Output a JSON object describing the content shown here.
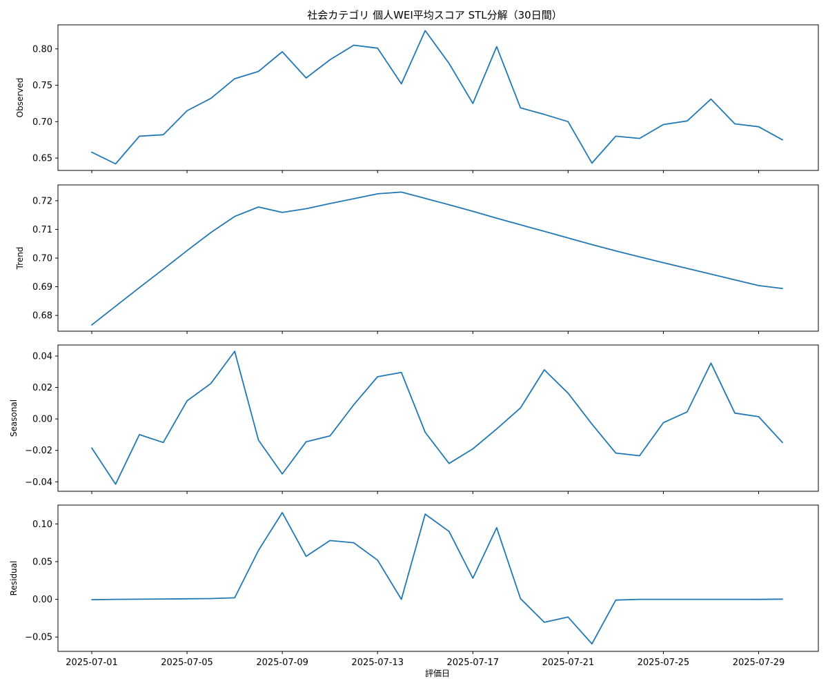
{
  "chart_data": {
    "type": "line",
    "title": "社会カテゴリ 個人WEI平均スコア STL分解（30日間）",
    "xlabel": "評価日",
    "x": [
      "2025-07-01",
      "2025-07-02",
      "2025-07-03",
      "2025-07-04",
      "2025-07-05",
      "2025-07-06",
      "2025-07-07",
      "2025-07-08",
      "2025-07-09",
      "2025-07-10",
      "2025-07-11",
      "2025-07-12",
      "2025-07-13",
      "2025-07-14",
      "2025-07-15",
      "2025-07-16",
      "2025-07-17",
      "2025-07-18",
      "2025-07-19",
      "2025-07-20",
      "2025-07-21",
      "2025-07-22",
      "2025-07-23",
      "2025-07-24",
      "2025-07-25",
      "2025-07-26",
      "2025-07-27",
      "2025-07-28",
      "2025-07-29",
      "2025-07-30"
    ],
    "x_ticks": [
      "2025-07-01",
      "2025-07-05",
      "2025-07-09",
      "2025-07-13",
      "2025-07-17",
      "2025-07-21",
      "2025-07-25",
      "2025-07-29"
    ],
    "line_color": "#1f77b4",
    "panels": [
      {
        "ylabel": "Observed",
        "ylim": [
          0.633,
          0.833
        ],
        "yticks": [
          0.65,
          0.7,
          0.75,
          0.8
        ],
        "ytick_labels": [
          "0.65",
          "0.70",
          "0.75",
          "0.80"
        ],
        "values": [
          0.658,
          0.642,
          0.68,
          0.682,
          0.715,
          0.732,
          0.759,
          0.769,
          0.796,
          0.76,
          0.785,
          0.805,
          0.801,
          0.752,
          0.825,
          0.78,
          0.725,
          0.803,
          0.719,
          0.71,
          0.7,
          0.643,
          0.68,
          0.677,
          0.696,
          0.701,
          0.731,
          0.697,
          0.693,
          0.675
        ]
      },
      {
        "ylabel": "Trend",
        "ylim": [
          0.6745,
          0.7255
        ],
        "yticks": [
          0.68,
          0.69,
          0.7,
          0.71,
          0.72
        ],
        "ytick_labels": [
          "0.68",
          "0.69",
          "0.70",
          "0.71",
          "0.72"
        ],
        "values": [
          0.6767,
          0.6832,
          0.6897,
          0.6961,
          0.7026,
          0.7089,
          0.7145,
          0.7178,
          0.7159,
          0.7172,
          0.719,
          0.7207,
          0.7224,
          0.723,
          0.7208,
          0.7186,
          0.7163,
          0.7139,
          0.7116,
          0.7093,
          0.707,
          0.7047,
          0.7025,
          0.7004,
          0.6984,
          0.6964,
          0.6944,
          0.6924,
          0.6904,
          0.6894
        ]
      },
      {
        "ylabel": "Seasonal",
        "ylim": [
          -0.046,
          0.047
        ],
        "yticks": [
          -0.04,
          -0.02,
          0.0,
          0.02,
          0.04
        ],
        "ytick_labels": [
          "−0.04",
          "−0.02",
          "0.00",
          "0.02",
          "0.04"
        ],
        "values": [
          -0.0185,
          -0.0415,
          -0.01,
          -0.015,
          0.0115,
          0.0225,
          0.043,
          -0.0135,
          -0.035,
          -0.0145,
          -0.0108,
          0.009,
          0.0268,
          0.0296,
          -0.0085,
          -0.0283,
          -0.019,
          -0.0064,
          0.007,
          0.0312,
          0.0164,
          -0.0033,
          -0.0217,
          -0.0234,
          -0.0024,
          0.0045,
          0.0355,
          0.0037,
          0.0014,
          -0.015
        ]
      },
      {
        "ylabel": "Residual",
        "ylim": [
          -0.069,
          0.125
        ],
        "yticks": [
          -0.05,
          0.0,
          0.05,
          0.1
        ],
        "ytick_labels": [
          "−0.05",
          "0.00",
          "0.05",
          "0.10"
        ],
        "values": [
          -0.0005,
          0.0,
          0.0002,
          0.0005,
          0.0007,
          0.001,
          0.002,
          0.065,
          0.115,
          0.057,
          0.078,
          0.075,
          0.052,
          0.0,
          0.113,
          0.09,
          0.028,
          0.095,
          0.001,
          -0.0305,
          -0.0235,
          -0.059,
          -0.001,
          0.0,
          0.0,
          0.0,
          0.0,
          0.0,
          -0.0001,
          0.0003
        ]
      }
    ]
  }
}
